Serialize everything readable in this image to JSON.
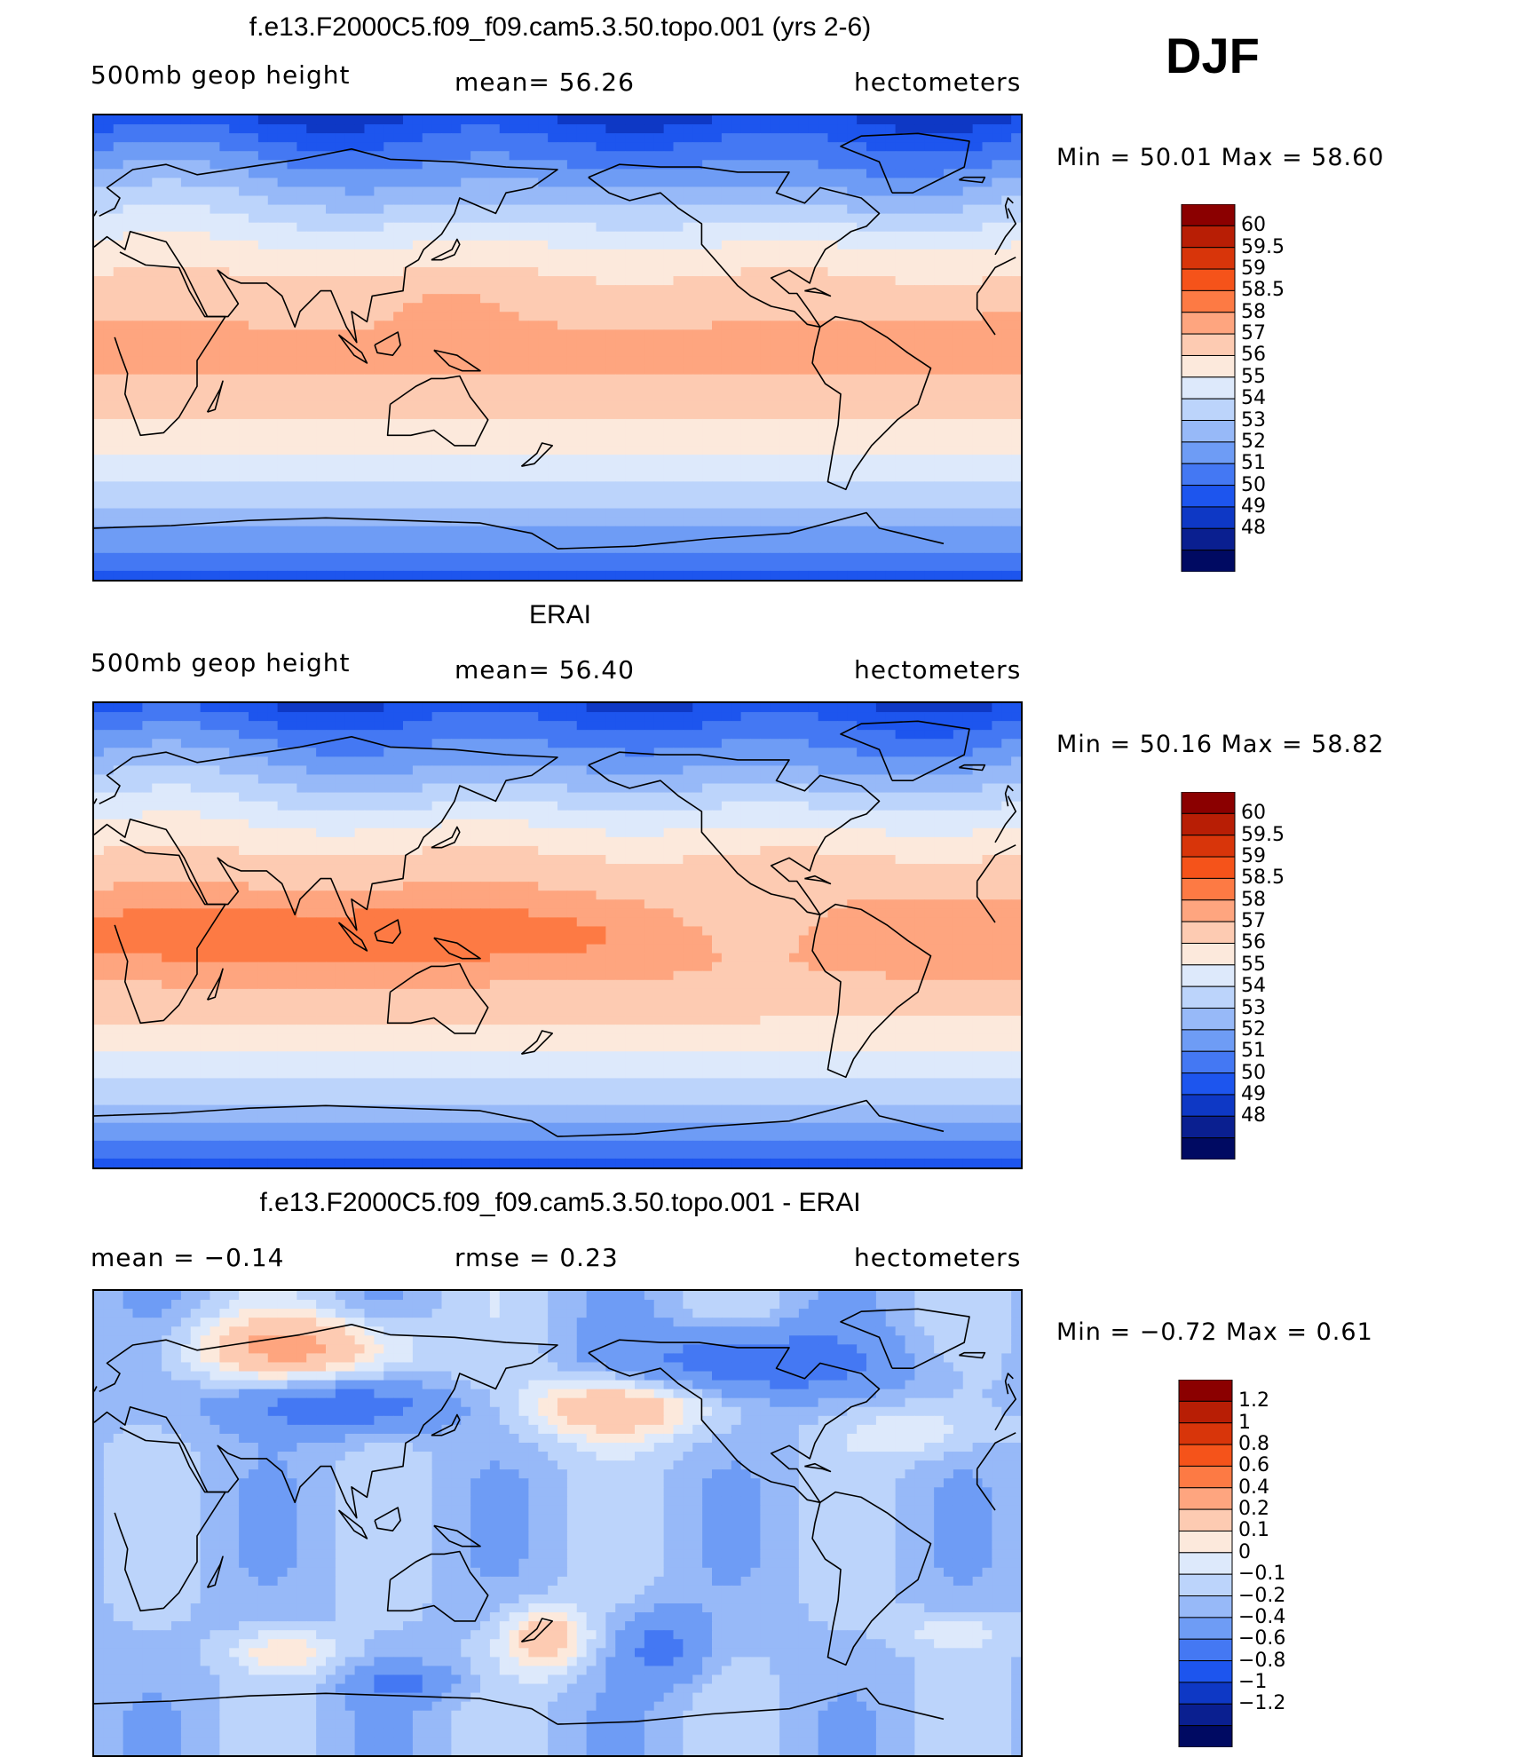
{
  "season": "DJF",
  "panels": [
    {
      "title": "f.e13.F2000C5.f09_f09.cam5.3.50.topo.001 (yrs 2-6)",
      "left": "500mb geop height",
      "center": "mean=   56.26",
      "right": "hectometers",
      "minmax": "Min =   50.01  Max =   58.60",
      "cbar_labels": [
        "60",
        "59.5",
        "59",
        "58.5",
        "58",
        "57",
        "56",
        "55",
        "54",
        "53",
        "52",
        "51",
        "50",
        "49",
        "48"
      ],
      "cbar_colors": [
        "#8b0000",
        "#b81e05",
        "#d8350a",
        "#f5531a",
        "#fd7a44",
        "#fea57f",
        "#fdcbb2",
        "#fce9dc",
        "#dde9fb",
        "#bcd4fb",
        "#97b9f8",
        "#6e9cf5",
        "#4478f3",
        "#1d55ee",
        "#0e38c5",
        "#0a1f90",
        "#000a62"
      ],
      "model": "model"
    },
    {
      "title": "ERAI",
      "left": "500mb geop height",
      "center": "mean=   56.40",
      "right": "hectometers",
      "minmax": "Min =   50.16  Max =   58.82",
      "cbar_labels": [
        "60",
        "59.5",
        "59",
        "58.5",
        "58",
        "57",
        "56",
        "55",
        "54",
        "53",
        "52",
        "51",
        "50",
        "49",
        "48"
      ],
      "cbar_colors": [
        "#8b0000",
        "#b81e05",
        "#d8350a",
        "#f5531a",
        "#fd7a44",
        "#fea57f",
        "#fdcbb2",
        "#fce9dc",
        "#dde9fb",
        "#bcd4fb",
        "#97b9f8",
        "#6e9cf5",
        "#4478f3",
        "#1d55ee",
        "#0e38c5",
        "#0a1f90",
        "#000a62"
      ],
      "model": "obs"
    },
    {
      "title": "f.e13.F2000C5.f09_f09.cam5.3.50.topo.001 - ERAI",
      "left": "mean =    −0.14",
      "center": "rmse =     0.23",
      "right": "hectometers",
      "minmax": "Min =   −0.72  Max =     0.61",
      "cbar_labels": [
        "1.2",
        "1",
        "0.8",
        "0.6",
        "0.4",
        "0.2",
        "0.1",
        "0",
        "−0.1",
        "−0.2",
        "−0.4",
        "−0.6",
        "−0.8",
        "−1",
        "−1.2"
      ],
      "cbar_colors": [
        "#8b0000",
        "#b81e05",
        "#d8350a",
        "#f5531a",
        "#fd7a44",
        "#fea57f",
        "#fdcbb2",
        "#fce9dc",
        "#dde9fb",
        "#bcd4fb",
        "#97b9f8",
        "#6e9cf5",
        "#4478f3",
        "#1d55ee",
        "#0e38c5",
        "#0a1f90",
        "#000a62"
      ],
      "model": "diff"
    }
  ],
  "chart_data": [
    {
      "type": "heatmap",
      "title": "f.e13.F2000C5.f09_f09.cam5.3.50.topo.001 (yrs 2-6)",
      "variable": "500mb geop height",
      "units": "hectometers",
      "mean": 56.26,
      "min": 50.01,
      "max": 58.6,
      "levels": [
        48,
        49,
        50,
        51,
        52,
        53,
        54,
        55,
        56,
        57,
        58,
        58.5,
        59,
        59.5,
        60
      ]
    },
    {
      "type": "heatmap",
      "title": "ERAI",
      "variable": "500mb geop height",
      "units": "hectometers",
      "mean": 56.4,
      "min": 50.16,
      "max": 58.82,
      "levels": [
        48,
        49,
        50,
        51,
        52,
        53,
        54,
        55,
        56,
        57,
        58,
        58.5,
        59,
        59.5,
        60
      ]
    },
    {
      "type": "heatmap",
      "title": "f.e13.F2000C5.f09_f09.cam5.3.50.topo.001 - ERAI",
      "units": "hectometers",
      "mean": -0.14,
      "rmse": 0.23,
      "min": -0.72,
      "max": 0.61,
      "levels": [
        -1.2,
        -1,
        -0.8,
        -0.6,
        -0.4,
        -0.2,
        -0.1,
        0,
        0.1,
        0.2,
        0.4,
        0.6,
        0.8,
        1,
        1.2
      ]
    }
  ]
}
